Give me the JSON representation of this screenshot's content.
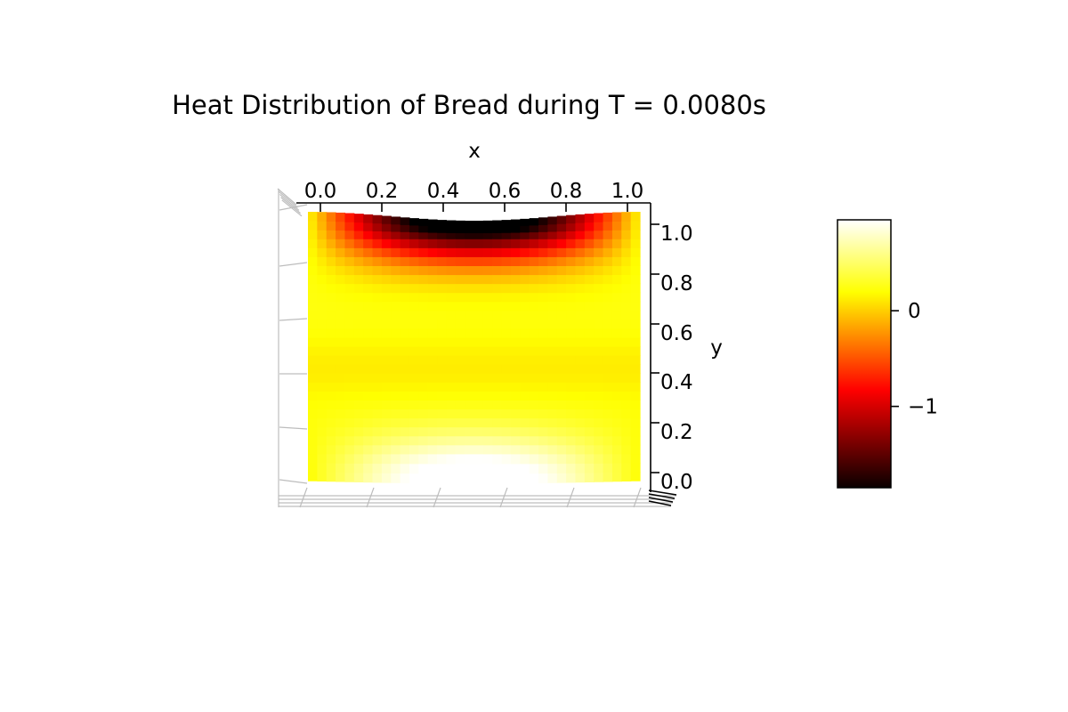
{
  "chart_data": {
    "type": "heatmap",
    "title": "Heat Distribution of Bread during T = 0.0080s",
    "xlabel": "x",
    "ylabel": "y",
    "xlim": [
      0.0,
      1.0
    ],
    "ylim": [
      0.0,
      1.0
    ],
    "x_ticks": [
      "0.0",
      "0.2",
      "0.4",
      "0.6",
      "0.8",
      "1.0"
    ],
    "y_ticks": [
      "1.0",
      "0.8",
      "0.6",
      "0.4",
      "0.2",
      "0.0"
    ],
    "colorbar": {
      "colormap": "hot",
      "range": [
        -1.85,
        0.95
      ],
      "ticks": [
        {
          "value": 0,
          "label": "0"
        },
        {
          "value": -1,
          "label": "−1"
        }
      ]
    },
    "values_description_free": true,
    "z_range": [
      -1.85,
      0.95
    ]
  }
}
